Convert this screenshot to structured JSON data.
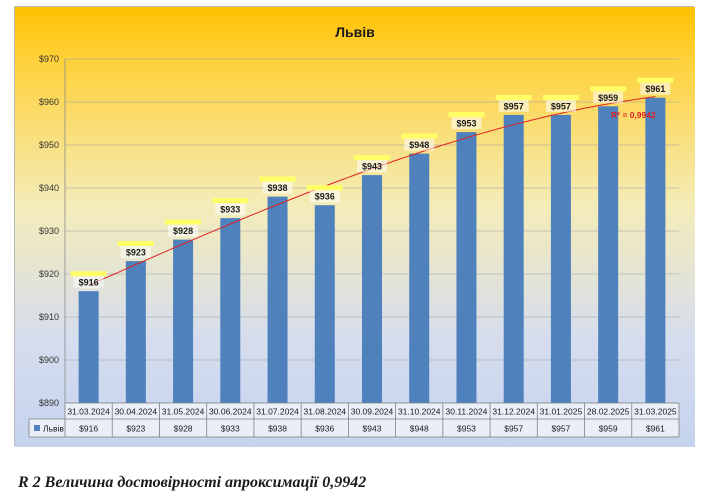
{
  "caption": "R 2 Величина достовірності апроксимації 0,9942",
  "chart_data": {
    "type": "bar",
    "title": "Львів",
    "categories": [
      "31.03.2024",
      "30.04.2024",
      "31.05.2024",
      "30.06.2024",
      "31.07.2024",
      "31.08.2024",
      "30.09.2024",
      "31.10.2024",
      "30.11.2024",
      "31.12.2024",
      "31.01.2025",
      "28.02.2025",
      "31.03.2025"
    ],
    "series": [
      {
        "name": "Львів",
        "values": [
          916,
          923,
          928,
          933,
          938,
          936,
          943,
          948,
          953,
          957,
          957,
          959,
          961
        ]
      }
    ],
    "data_labels": [
      "$916",
      "$923",
      "$928",
      "$933",
      "$938",
      "$936",
      "$943",
      "$948",
      "$953",
      "$957",
      "$957",
      "$959",
      "$961"
    ],
    "table_values": [
      "$916",
      "$923",
      "$928",
      "$933",
      "$938",
      "$936",
      "$943",
      "$948",
      "$953",
      "$957",
      "$957",
      "$959",
      "$961"
    ],
    "ylim": [
      890,
      970
    ],
    "yticks": [
      890,
      900,
      910,
      920,
      930,
      940,
      950,
      960,
      970
    ],
    "ytick_labels": [
      "$890",
      "$900",
      "$910",
      "$920",
      "$930",
      "$940",
      "$950",
      "$960",
      "$970"
    ],
    "grid": true,
    "legend_placement": "data-table",
    "trendline": {
      "type": "polynomial",
      "r2_label": "R² = 0,9942",
      "color": "#e02020"
    },
    "colors": {
      "bar": "#4f81bd",
      "bg_top": "#ffc000",
      "bg_bottom": "#c5d3ee",
      "label_highlight": "#ffff66"
    }
  }
}
